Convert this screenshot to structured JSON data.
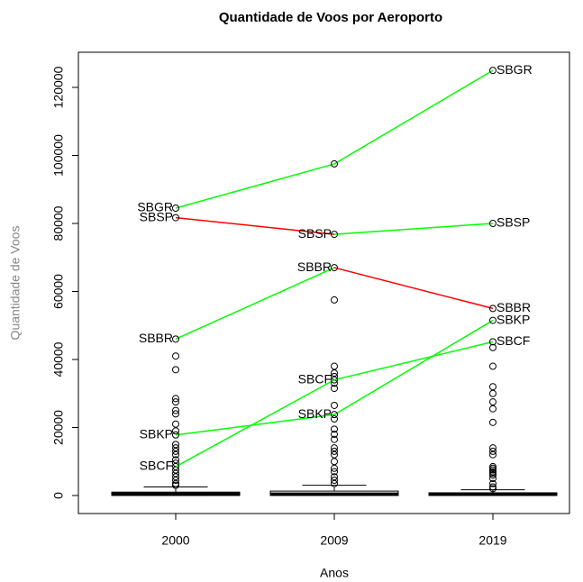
{
  "chart_data": {
    "type": "boxplot",
    "title": "Quantidade de Voos por Aeroporto",
    "x_label": "Anos",
    "y_label": "Quantidade de Voos",
    "categories": [
      "2000",
      "2009",
      "2019"
    ],
    "ylim": [
      -5300,
      130330
    ],
    "yticks": [
      0,
      20000,
      40000,
      60000,
      80000,
      100000,
      120000
    ],
    "boxes": [
      {
        "min": 0,
        "q1": 0,
        "median": 500,
        "q3": 1000,
        "max": 2500,
        "outliers": [
          41000,
          37000,
          28500,
          27500,
          25000,
          24000,
          21000,
          19000,
          15000,
          14000,
          13000,
          12000,
          10500,
          9500,
          7500,
          6500,
          5500,
          4500,
          3500,
          3000
        ]
      },
      {
        "min": 0,
        "q1": 0,
        "median": 500,
        "q3": 1300,
        "max": 3000,
        "outliers": [
          57500,
          38000,
          36000,
          35000,
          33000,
          31500,
          26500,
          22500,
          19500,
          18000,
          16500,
          14000,
          13000,
          12000,
          10000,
          8000,
          7000,
          5500,
          4500,
          3500
        ]
      },
      {
        "min": 0,
        "q1": 0,
        "median": 300,
        "q3": 800,
        "max": 1700,
        "outliers": [
          43500,
          38000,
          32000,
          30000,
          27500,
          25500,
          21500,
          14000,
          13000,
          12000,
          8500,
          8000,
          7500,
          7000,
          6500,
          6000,
          5000,
          3500,
          2500,
          2000
        ]
      }
    ],
    "up_color": "#00ff00",
    "down_color": "#ff0000",
    "series": [
      {
        "point_labels": [
          "SBGR",
          null,
          "SBGR"
        ],
        "values": [
          84500,
          97500,
          125000
        ]
      },
      {
        "point_labels": [
          "SBSP",
          "SBSP",
          "SBSP"
        ],
        "values": [
          81700,
          76800,
          80000
        ]
      },
      {
        "point_labels": [
          "SBBR",
          "SBBR",
          "SBBR"
        ],
        "values": [
          46000,
          67000,
          55000
        ]
      },
      {
        "point_labels": [
          "SBKP",
          "SBKP",
          "SBKP"
        ],
        "values": [
          17800,
          23800,
          51500
        ]
      },
      {
        "point_labels": [
          "SBCF",
          "SBCF",
          "SBCF"
        ],
        "values": [
          8500,
          34000,
          45200
        ]
      }
    ]
  }
}
